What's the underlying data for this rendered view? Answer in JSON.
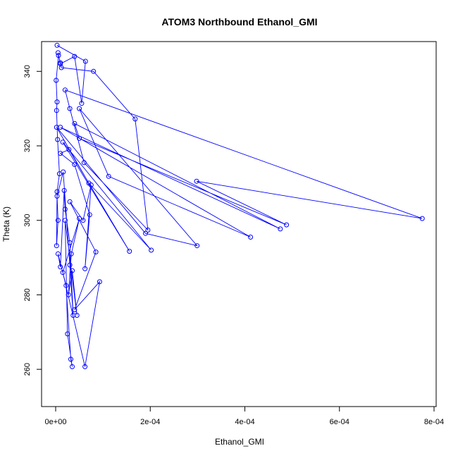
{
  "chart_data": {
    "type": "line",
    "title": "ATOM3 Northbound Ethanol_GMI",
    "xlabel": "Ethanol_GMI",
    "ylabel": "Theta (K)",
    "xlim": [
      0,
      0.0008
    ],
    "ylim": [
      250,
      348
    ],
    "x_ticks": [
      0,
      0.0002,
      0.0004,
      0.0006,
      0.0008
    ],
    "x_tick_labels": [
      "0e+00",
      "2e-04",
      "4e-04",
      "6e-04",
      "8e-04"
    ],
    "y_ticks": [
      260,
      280,
      300,
      320,
      340
    ],
    "y_tick_labels": [
      "260",
      "280",
      "300",
      "320",
      "340"
    ],
    "grid": false,
    "colors": {
      "series": "#0000ff",
      "axes": "#000000",
      "background": "#ffffff"
    },
    "series": [
      {
        "marker": "open-circle",
        "points": [
          [
            3e-06,
            347.0
          ],
          [
            6.3e-05,
            342.7
          ],
          [
            5.5e-05,
            331.4
          ],
          [
            4e-05,
            344.0
          ],
          [
            1e-05,
            342.0
          ],
          [
            5e-06,
            345.0
          ],
          [
            1.2e-05,
            341.0
          ],
          [
            8e-05,
            340.0
          ],
          [
            0.000168,
            327.2
          ],
          [
            0.000195,
            297.4
          ],
          [
            6e-05,
            315.5
          ],
          [
            3e-05,
            330.0
          ],
          [
            2e-05,
            335.0
          ],
          [
            0.000775,
            300.5
          ],
          [
            0.000298,
            310.5
          ],
          [
            0.000488,
            298.8
          ],
          [
            5e-05,
            322.0
          ],
          [
            4e-05,
            326.0
          ],
          [
            0.000475,
            297.7
          ],
          [
            1e-05,
            325.0
          ],
          [
            0.000412,
            295.5
          ],
          [
            0.000112,
            311.8
          ],
          [
            5e-05,
            330.0
          ],
          [
            0.000299,
            293.2
          ],
          [
            0.00019,
            296.5
          ],
          [
            2e-06,
            325.0
          ],
          [
            7e-05,
            310.0
          ],
          [
            0.000202,
            292.0
          ],
          [
            1.5e-05,
            321.0
          ],
          [
            0.000156,
            291.7
          ],
          [
            2.8e-05,
            319.0
          ],
          [
            1e-05,
            318.0
          ],
          [
            4e-05,
            315.0
          ],
          [
            7.2e-05,
            301.5
          ],
          [
            6.2e-05,
            287.0
          ],
          [
            7.5e-05,
            309.5
          ],
          [
            5.8e-05,
            300.0
          ],
          [
            3e-05,
            305.0
          ],
          [
            8.5e-05,
            291.5
          ],
          [
            4e-05,
            276.0
          ],
          [
            9.3e-05,
            283.5
          ],
          [
            6.2e-05,
            260.7
          ],
          [
            1.5e-05,
            286.0
          ],
          [
            5e-05,
            300.5
          ],
          [
            3.3e-05,
            291.0
          ],
          [
            2.7e-05,
            280.0
          ],
          [
            3.5e-05,
            286.5
          ],
          [
            4.5e-05,
            274.5
          ],
          [
            2e-05,
            300.0
          ],
          [
            2.5e-05,
            269.5
          ],
          [
            3.5e-05,
            260.7
          ],
          [
            3.2e-05,
            262.7
          ],
          [
            2.2e-05,
            282.5
          ],
          [
            5e-06,
            291.0
          ],
          [
            1e-05,
            287.5
          ],
          [
            1.8e-05,
            308.0
          ],
          [
            2e-05,
            303.0
          ],
          [
            3e-05,
            294.0
          ],
          [
            3.7e-05,
            274.5
          ],
          [
            3e-05,
            288.0
          ],
          [
            1.6e-05,
            313.0
          ],
          [
            3e-06,
            306.5
          ],
          [
            5e-06,
            300.0
          ],
          [
            2e-06,
            293.2
          ],
          [
            3e-06,
            307.7
          ],
          [
            8e-06,
            312.5
          ],
          [
            4e-06,
            321.7
          ],
          [
            2e-06,
            329.5
          ],
          [
            3e-06,
            331.8
          ],
          [
            1e-06,
            337.6
          ],
          [
            6e-06,
            344.3
          ],
          [
            1e-05,
            342.3
          ]
        ]
      }
    ]
  }
}
